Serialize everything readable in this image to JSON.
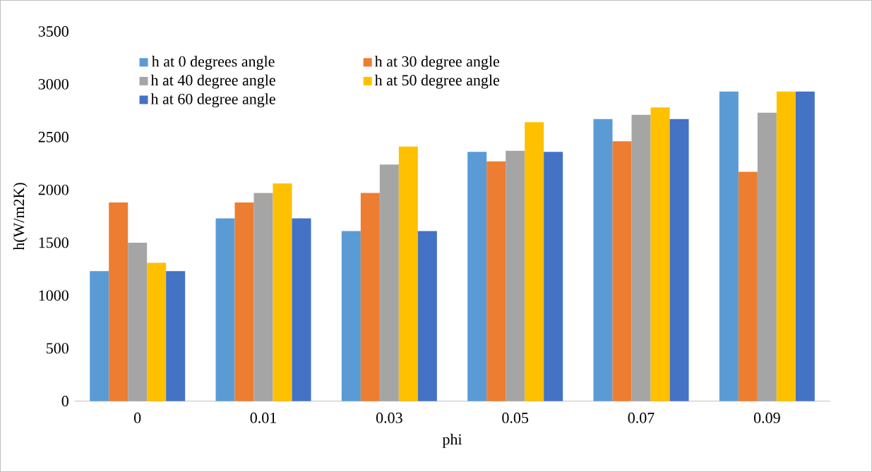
{
  "chart_data": {
    "type": "bar",
    "xlabel": "phi",
    "ylabel": "h(W/m2K)",
    "categories": [
      "0",
      "0.01",
      "0.03",
      "0.05",
      "0.07",
      "0.09"
    ],
    "series": [
      {
        "name": "h at 0 degrees angle",
        "color": "#5b9bd5",
        "values": [
          1230,
          1730,
          1610,
          2360,
          2670,
          2930
        ]
      },
      {
        "name": "h at 30 degree angle",
        "color": "#ed7d31",
        "values": [
          1880,
          1880,
          1970,
          2270,
          2460,
          2170
        ]
      },
      {
        "name": "h at 40 degree angle",
        "color": "#a5a5a5",
        "values": [
          1500,
          1970,
          2240,
          2370,
          2710,
          2730
        ]
      },
      {
        "name": "h at 50 degree angle",
        "color": "#ffc000",
        "values": [
          1310,
          2060,
          2410,
          2640,
          2780,
          2930
        ]
      },
      {
        "name": "h at 60 degree angle",
        "color": "#4472c4",
        "values": [
          1230,
          1730,
          1610,
          2360,
          2670,
          2930
        ]
      }
    ],
    "ylim": [
      0,
      3500
    ],
    "yticks": [
      0,
      500,
      1000,
      1500,
      2000,
      2500,
      3000,
      3500
    ],
    "legend": "top left"
  }
}
